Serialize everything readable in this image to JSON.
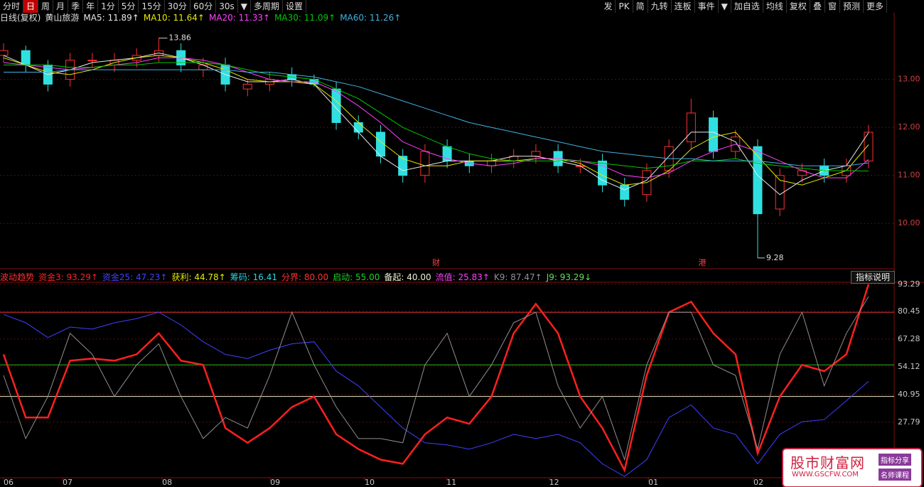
{
  "toolbar": {
    "left": [
      "分时",
      "日",
      "周",
      "月",
      "季",
      "年",
      "1分",
      "5分",
      "15分",
      "30分",
      "60分",
      "30s",
      "▼",
      "多周期",
      "设置"
    ],
    "right": [
      "发",
      "PK",
      "简",
      "九转",
      "连板",
      "事件",
      "▼",
      "加自选",
      "均线",
      "复权",
      "叠",
      "窗",
      "预测",
      "更多"
    ],
    "active": 1
  },
  "chart_data": [
    {
      "type": "candlestick",
      "title": "日线(复权)",
      "subtitle": "黄山旅游",
      "x": [
        0,
        1,
        2,
        3,
        4,
        5,
        6,
        7,
        8,
        9,
        10,
        11,
        12,
        13,
        14,
        15,
        16,
        17,
        18,
        19,
        20,
        21,
        22,
        23,
        24,
        25,
        26,
        27,
        28,
        29,
        30,
        31,
        32,
        33,
        34,
        35,
        36,
        37,
        38,
        39
      ],
      "xlim": [
        0,
        39
      ],
      "ylim": [
        9.1,
        14.15
      ],
      "yticks": [
        {
          "value": 13,
          "label": "13.00"
        },
        {
          "value": 12,
          "label": "12.00"
        },
        {
          "value": 11,
          "label": "11.00"
        },
        {
          "value": 10,
          "label": "10.00"
        }
      ],
      "grid": true,
      "up_color": "#ff3030",
      "down_color": "#30e0e0",
      "open": [
        13.5,
        13.6,
        13.3,
        13.0,
        13.4,
        13.3,
        13.4,
        13.5,
        13.6,
        13.2,
        13.3,
        12.8,
        12.9,
        13.1,
        13.0,
        12.8,
        12.1,
        11.9,
        11.4,
        11.0,
        11.6,
        11.3,
        11.2,
        11.3,
        11.4,
        11.5,
        11.2,
        11.3,
        10.8,
        10.6,
        11.1,
        11.7,
        12.2,
        11.5,
        11.6,
        10.3,
        11.0,
        11.2,
        11.0,
        11.3
      ],
      "high": [
        13.75,
        13.7,
        13.4,
        13.55,
        13.55,
        13.55,
        13.65,
        13.86,
        13.75,
        13.45,
        13.45,
        13.0,
        13.15,
        13.25,
        13.1,
        12.95,
        12.25,
        12.05,
        11.55,
        11.65,
        11.75,
        11.45,
        11.45,
        11.55,
        11.65,
        11.65,
        11.35,
        11.45,
        10.95,
        11.25,
        11.75,
        12.6,
        12.35,
        11.95,
        11.75,
        11.15,
        11.25,
        11.35,
        11.35,
        12.05
      ],
      "low": [
        13.35,
        13.15,
        12.75,
        12.85,
        13.25,
        13.15,
        13.25,
        13.35,
        13.15,
        13.05,
        12.75,
        12.65,
        12.75,
        12.85,
        12.85,
        11.95,
        11.75,
        11.25,
        10.85,
        10.85,
        11.15,
        11.05,
        11.05,
        11.15,
        11.25,
        11.05,
        11.05,
        10.65,
        10.35,
        10.45,
        10.95,
        11.55,
        11.35,
        11.35,
        9.28,
        10.15,
        10.85,
        10.85,
        10.85,
        11.15
      ],
      "close": [
        13.6,
        13.3,
        12.9,
        13.4,
        13.4,
        13.4,
        13.5,
        13.6,
        13.3,
        13.3,
        12.9,
        12.9,
        13.0,
        13.0,
        12.9,
        12.1,
        11.9,
        11.4,
        11.0,
        11.5,
        11.3,
        11.2,
        11.3,
        11.4,
        11.5,
        11.2,
        11.2,
        10.8,
        10.5,
        11.1,
        11.6,
        12.3,
        11.5,
        11.8,
        10.2,
        11.0,
        11.1,
        11.0,
        11.2,
        11.9
      ],
      "high_label_index": 7,
      "low_label_index": 34,
      "annotations": [
        {
          "text": "财",
          "x": 19.5
        },
        {
          "text": "港",
          "x": 31.5
        }
      ],
      "series": [
        {
          "name": "MA5: 11.89↑",
          "color": "#e8e8e8",
          "values": [
            13.5,
            13.3,
            13.1,
            13.2,
            13.35,
            13.4,
            13.45,
            13.55,
            13.45,
            13.3,
            13.1,
            12.95,
            12.95,
            13.0,
            12.9,
            12.4,
            11.9,
            11.4,
            11.1,
            11.2,
            11.3,
            11.3,
            11.3,
            11.4,
            11.4,
            11.3,
            11.2,
            10.9,
            10.7,
            10.9,
            11.4,
            11.9,
            11.9,
            11.7,
            11.0,
            10.6,
            10.9,
            11.1,
            11.2,
            11.89
          ]
        },
        {
          "name": "MA10: 11.64↑",
          "color": "#e8e800",
          "values": [
            13.45,
            13.3,
            13.15,
            13.1,
            13.2,
            13.35,
            13.45,
            13.5,
            13.45,
            13.35,
            13.2,
            13.0,
            12.95,
            12.95,
            12.9,
            12.55,
            12.1,
            11.7,
            11.35,
            11.2,
            11.2,
            11.3,
            11.3,
            11.3,
            11.35,
            11.35,
            11.25,
            11.0,
            10.8,
            10.85,
            11.1,
            11.55,
            11.8,
            11.9,
            11.4,
            10.9,
            10.8,
            10.95,
            11.1,
            11.64
          ]
        },
        {
          "name": "MA20: 11.33↑",
          "color": "#ff40ff",
          "values": [
            13.35,
            13.3,
            13.25,
            13.2,
            13.25,
            13.3,
            13.35,
            13.45,
            13.45,
            13.4,
            13.3,
            13.15,
            13.0,
            12.95,
            12.95,
            12.75,
            12.45,
            12.1,
            11.7,
            11.5,
            11.35,
            11.25,
            11.2,
            11.25,
            11.35,
            11.35,
            11.3,
            11.2,
            11.0,
            10.95,
            11.05,
            11.3,
            11.5,
            11.65,
            11.5,
            11.3,
            11.1,
            10.95,
            10.95,
            11.33
          ]
        },
        {
          "name": "MA30: 11.09↑",
          "color": "#00c800",
          "values": [
            13.3,
            13.3,
            13.3,
            13.25,
            13.25,
            13.3,
            13.3,
            13.35,
            13.35,
            13.35,
            13.3,
            13.2,
            13.1,
            13.05,
            13.0,
            12.8,
            12.6,
            12.3,
            12.0,
            11.8,
            11.6,
            11.45,
            11.35,
            11.3,
            11.3,
            11.3,
            11.3,
            11.25,
            11.2,
            11.15,
            11.2,
            11.3,
            11.3,
            11.35,
            11.25,
            11.2,
            11.15,
            11.1,
            11.1,
            11.09
          ]
        },
        {
          "name": "MA60: 11.26↑",
          "color": "#40b0e0",
          "values": [
            13.15,
            13.15,
            13.15,
            13.2,
            13.2,
            13.2,
            13.2,
            13.2,
            13.2,
            13.2,
            13.2,
            13.15,
            13.15,
            13.1,
            13.05,
            12.95,
            12.85,
            12.7,
            12.55,
            12.4,
            12.25,
            12.1,
            12.0,
            11.9,
            11.8,
            11.7,
            11.6,
            11.5,
            11.45,
            11.4,
            11.35,
            11.35,
            11.3,
            11.3,
            11.3,
            11.25,
            11.2,
            11.2,
            11.2,
            11.26
          ]
        }
      ]
    },
    {
      "type": "line",
      "title": "波动趋势",
      "button": "指标说明",
      "x": [
        0,
        1,
        2,
        3,
        4,
        5,
        6,
        7,
        8,
        9,
        10,
        11,
        12,
        13,
        14,
        15,
        16,
        17,
        18,
        19,
        20,
        21,
        22,
        23,
        24,
        25,
        26,
        27,
        28,
        29,
        30,
        31,
        32,
        33,
        34,
        35,
        36,
        37,
        38,
        39
      ],
      "xlim": [
        0,
        39
      ],
      "ylim": [
        -2,
        94.6
      ],
      "yticks": [
        93.29,
        80.45,
        67.28,
        54.12,
        40.95,
        27.79
      ],
      "grid": true,
      "xticks": [
        {
          "value": 0,
          "label": "06"
        },
        {
          "value": 2.66,
          "label": "07"
        },
        {
          "value": 7.15,
          "label": "08"
        },
        {
          "value": 12.02,
          "label": "09"
        },
        {
          "value": 16.28,
          "label": "10"
        },
        {
          "value": 19.97,
          "label": "11"
        },
        {
          "value": 24.6,
          "label": "12"
        },
        {
          "value": 29.07,
          "label": "01"
        },
        {
          "value": 33.81,
          "label": "02"
        }
      ],
      "reference_lines": [
        {
          "value": 80,
          "color": "#e03030"
        },
        {
          "value": 55,
          "color": "#20c020"
        },
        {
          "value": 40,
          "color": "#e8e8c0"
        }
      ],
      "extra_legend": [
        {
          "label": "获利: 44.78↑",
          "color": "#e8e800"
        },
        {
          "label": "筹码: 16.41",
          "color": "#30d0e0"
        },
        {
          "label": "分界: 80.00",
          "color": "#ff3030"
        },
        {
          "label": "启动: 55.00",
          "color": "#20d020"
        },
        {
          "label": "备起: 40.00",
          "color": "#f0f0d0"
        },
        {
          "label": "流值: 25.83↑",
          "color": "#ff40ff"
        }
      ],
      "series": [
        {
          "name": "资金3: 93.29↑",
          "color": "#ff2020",
          "width": 2.5,
          "values": [
            60,
            30,
            30,
            57,
            58,
            57,
            60,
            70,
            57,
            55,
            25,
            18,
            25,
            35,
            40,
            22,
            15,
            10,
            8,
            22,
            30,
            27,
            40,
            70,
            84,
            70,
            40,
            25,
            5,
            50,
            80,
            85,
            70,
            60,
            13,
            40,
            55,
            52,
            60,
            93.29
          ]
        },
        {
          "name": "资金25: 47.23↑",
          "color": "#4040ff",
          "width": 1,
          "values": [
            79,
            75,
            68,
            73,
            72,
            75,
            77,
            80,
            74,
            66,
            60,
            58,
            62,
            65,
            66,
            52,
            45,
            35,
            25,
            18,
            17,
            15,
            18,
            22,
            20,
            22,
            18,
            8,
            2,
            10,
            30,
            36,
            25,
            22,
            8,
            22,
            28,
            29,
            38,
            47.23
          ]
        },
        {
          "name": "K9: 87.47↑",
          "color": "#909090",
          "width": 1,
          "values": [
            50,
            20,
            40,
            70,
            60,
            40,
            55,
            65,
            40,
            20,
            30,
            25,
            50,
            80,
            55,
            35,
            20,
            20,
            18,
            55,
            70,
            40,
            55,
            75,
            80,
            45,
            25,
            40,
            10,
            55,
            80,
            80,
            55,
            50,
            15,
            60,
            80,
            45,
            70,
            87.47
          ]
        }
      ],
      "trailing_legend": [
        {
          "label": "J9: 93.29↓",
          "color": "#60e060"
        }
      ]
    }
  ],
  "watermark": {
    "title": "股市财富网",
    "url": "WWW.GSCFW.COM",
    "tags": [
      "指标分享",
      "名师课程"
    ]
  }
}
